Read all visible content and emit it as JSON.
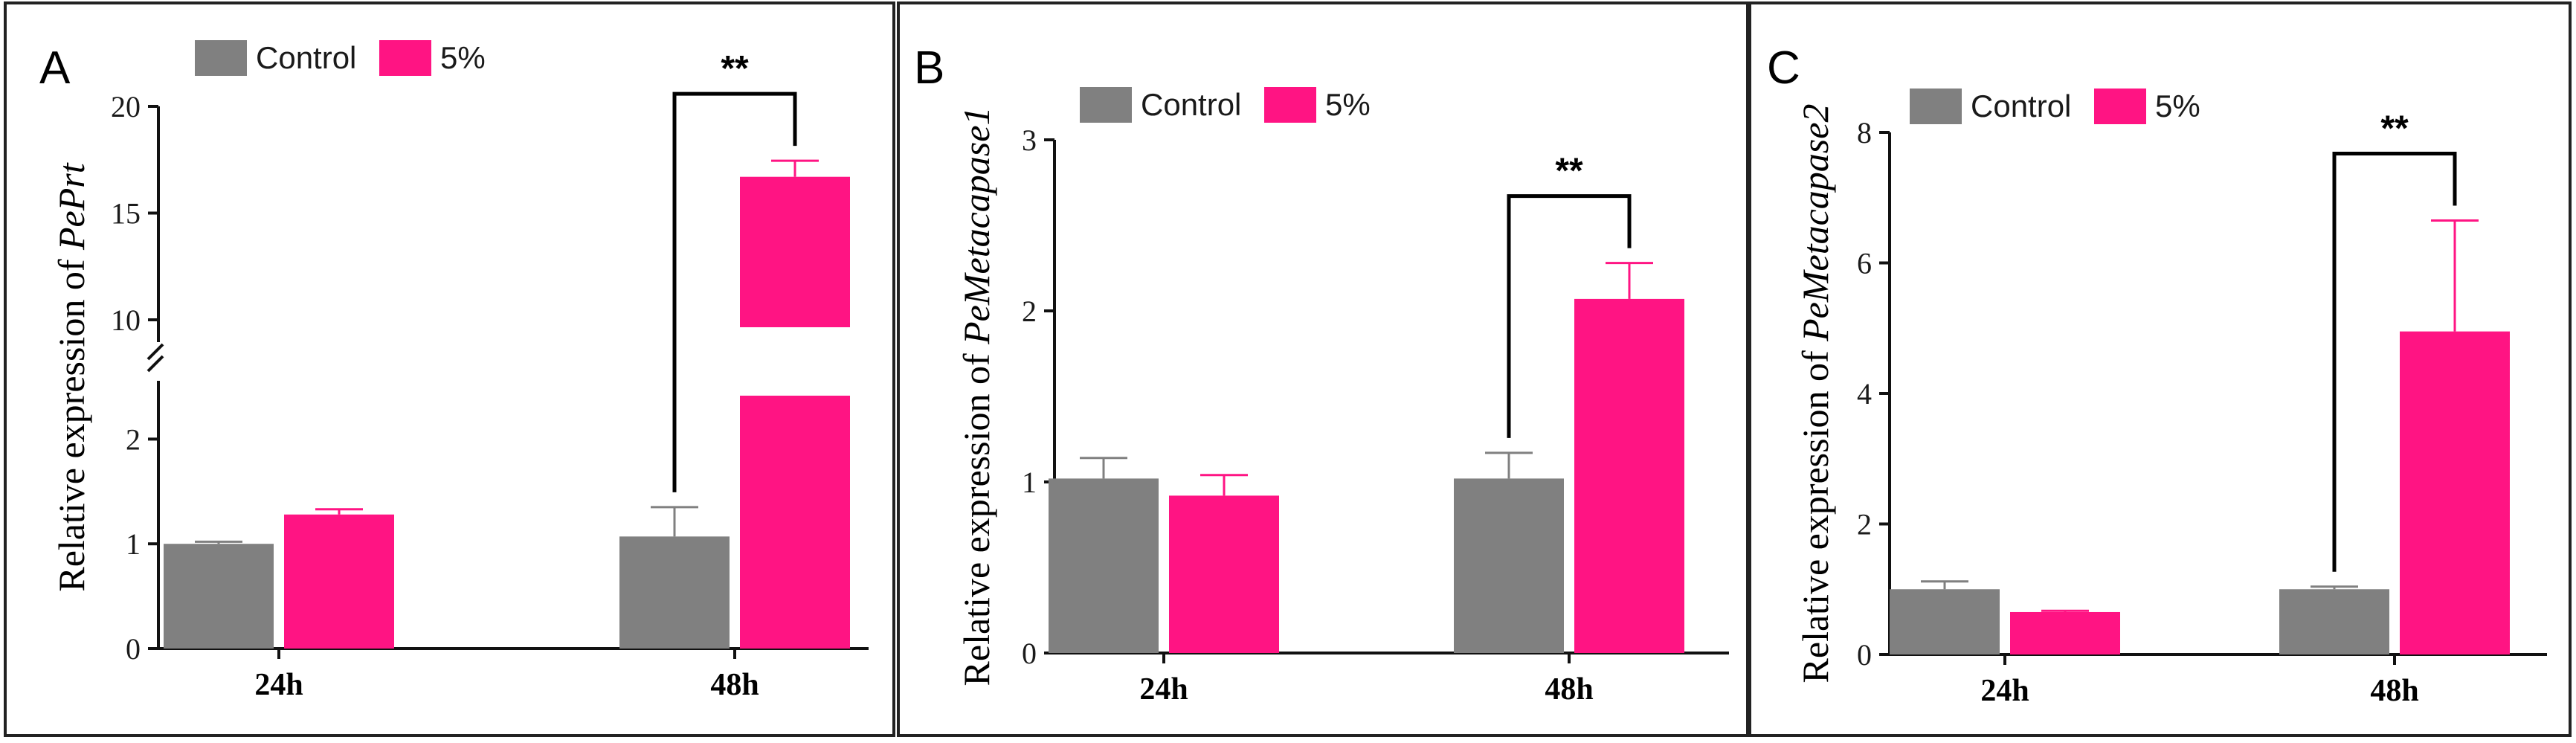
{
  "colors": {
    "control": "#808080",
    "treatment": "#FF1483",
    "frame": "#222222",
    "axis": "#111111"
  },
  "chart_data": [
    {
      "type": "bar",
      "panel": "A",
      "ylabel_prefix": "Relative expression of ",
      "ylabel_gene": "PePrt",
      "categories": [
        "24h",
        "48h"
      ],
      "legend": [
        "Control",
        "5%"
      ],
      "series": [
        {
          "name": "Control",
          "values": [
            1.0,
            1.07
          ],
          "errors": [
            0.02,
            0.28
          ]
        },
        {
          "name": "5%",
          "values": [
            1.28,
            16.7
          ],
          "errors": [
            0.05,
            0.75
          ]
        }
      ],
      "y_broken": true,
      "y_lower_range": [
        0,
        2.5
      ],
      "y_upper_range": [
        10,
        20
      ],
      "y_lower_ticks": [
        0,
        1,
        2
      ],
      "y_upper_ticks": [
        10,
        15,
        20
      ],
      "y_tick_labels_lower": [
        "0",
        "1",
        "2"
      ],
      "y_tick_labels_upper": [
        "10",
        "15",
        "20"
      ],
      "significance": {
        "category": "48h",
        "label": "**"
      }
    },
    {
      "type": "bar",
      "panel": "B",
      "ylabel_prefix": "Relative expression of ",
      "ylabel_gene": "PeMetacapase1",
      "categories": [
        "24h",
        "48h"
      ],
      "legend": [
        "Control",
        "5%"
      ],
      "series": [
        {
          "name": "Control",
          "values": [
            1.02,
            1.02
          ],
          "errors": [
            0.12,
            0.15
          ]
        },
        {
          "name": "5%",
          "values": [
            0.92,
            2.07
          ],
          "errors": [
            0.12,
            0.21
          ]
        }
      ],
      "ylim": [
        0,
        3
      ],
      "y_ticks": [
        0,
        1,
        2,
        3
      ],
      "y_tick_labels": [
        "0",
        "1",
        "2",
        "3"
      ],
      "significance": {
        "category": "48h",
        "label": "**"
      }
    },
    {
      "type": "bar",
      "panel": "C",
      "ylabel_prefix": "Relative expression of ",
      "ylabel_gene": "PeMetacapase2",
      "categories": [
        "24h",
        "48h"
      ],
      "legend": [
        "Control",
        "5%"
      ],
      "series": [
        {
          "name": "Control",
          "values": [
            1.0,
            1.0
          ],
          "errors": [
            0.12,
            0.04
          ]
        },
        {
          "name": "5%",
          "values": [
            0.65,
            4.95
          ],
          "errors": [
            0.02,
            1.7
          ]
        }
      ],
      "ylim": [
        0,
        8
      ],
      "y_ticks": [
        0,
        2,
        4,
        6,
        8
      ],
      "y_tick_labels": [
        "0",
        "2",
        "4",
        "6",
        "8"
      ],
      "significance": {
        "category": "48h",
        "label": "**"
      }
    }
  ]
}
